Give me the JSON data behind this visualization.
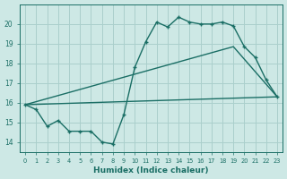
{
  "background_color": "#cde8e5",
  "grid_color": "#aacfcc",
  "line_color": "#1a6e65",
  "xlabel": "Humidex (Indice chaleur)",
  "xlim": [
    -0.5,
    23.5
  ],
  "ylim": [
    13.5,
    21.0
  ],
  "yticks": [
    14,
    15,
    16,
    17,
    18,
    19,
    20
  ],
  "xticks": [
    0,
    1,
    2,
    3,
    4,
    5,
    6,
    7,
    8,
    9,
    10,
    11,
    12,
    13,
    14,
    15,
    16,
    17,
    18,
    19,
    20,
    21,
    22,
    23
  ],
  "line1_x": [
    0,
    1,
    2,
    3,
    4,
    5,
    6,
    7,
    8,
    9,
    10,
    11,
    12,
    13,
    14,
    15,
    16,
    17,
    18,
    19,
    20,
    21,
    22,
    23
  ],
  "line1_y": [
    15.9,
    15.65,
    14.8,
    15.1,
    14.55,
    14.55,
    14.55,
    14.0,
    13.9,
    15.4,
    17.8,
    19.1,
    20.1,
    19.85,
    20.35,
    20.1,
    20.0,
    20.0,
    20.1,
    19.9,
    18.85,
    18.3,
    17.15,
    16.3
  ],
  "line2_x": [
    0,
    23
  ],
  "line2_y": [
    15.9,
    16.3
  ],
  "line3_x": [
    0,
    19,
    23
  ],
  "line3_y": [
    15.9,
    18.85,
    16.3
  ]
}
